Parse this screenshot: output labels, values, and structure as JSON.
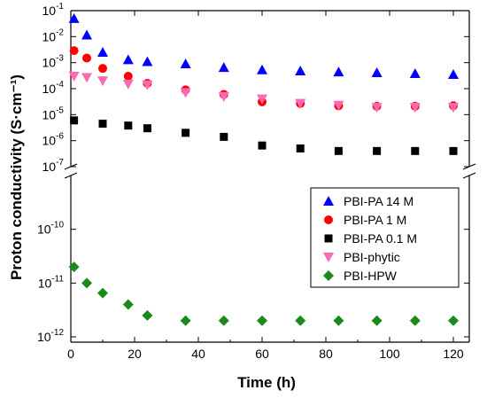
{
  "chart_data": {
    "type": "scatter",
    "xlabel": "Time (h)",
    "ylabel": "Proton conductivity (S·cm⁻¹)",
    "xlim": [
      0,
      125
    ],
    "xticks": [
      0,
      20,
      40,
      60,
      80,
      100,
      120
    ],
    "y_scale": "log",
    "y_axis_broken": true,
    "upper_panel": {
      "ylim": [
        1e-07,
        0.1
      ]
    },
    "lower_panel": {
      "ylim": [
        1e-12,
        1e-09
      ]
    },
    "yticks": [
      {
        "value": 0.1,
        "base": "10",
        "exp": "-1"
      },
      {
        "value": 0.01,
        "base": "10",
        "exp": "-2"
      },
      {
        "value": 0.001,
        "base": "10",
        "exp": "-3"
      },
      {
        "value": 0.0001,
        "base": "10",
        "exp": "-4"
      },
      {
        "value": 1e-05,
        "base": "10",
        "exp": "-5"
      },
      {
        "value": 1e-06,
        "base": "10",
        "exp": "-6"
      },
      {
        "value": 1e-07,
        "base": "10",
        "exp": "-7"
      },
      {
        "value": 1e-10,
        "base": "10",
        "exp": "-10"
      },
      {
        "value": 1e-11,
        "base": "10",
        "exp": "-11"
      },
      {
        "value": 1e-12,
        "base": "10",
        "exp": "-12"
      }
    ],
    "legend_position": "right",
    "series": [
      {
        "name": "PBI-PA 14 M",
        "marker": "triangle-up",
        "color": "#0000ff",
        "x": [
          1,
          5,
          10,
          18,
          24,
          36,
          48,
          60,
          72,
          84,
          96,
          108,
          120
        ],
        "y": [
          0.05,
          0.0115,
          0.0025,
          0.0013,
          0.0011,
          0.0009,
          0.00065,
          0.00053,
          0.00048,
          0.00044,
          0.00041,
          0.00038,
          0.00035
        ]
      },
      {
        "name": "PBI-PA 1 M",
        "marker": "circle",
        "color": "#ff0000",
        "x": [
          1,
          5,
          10,
          18,
          24,
          36,
          48,
          60,
          72,
          84,
          96,
          108,
          120
        ],
        "y": [
          0.0029,
          0.0015,
          0.0006,
          0.0003,
          0.00016,
          9e-05,
          6e-05,
          3.1e-05,
          2.7e-05,
          2.2e-05,
          2.1e-05,
          2.1e-05,
          2.2e-05
        ]
      },
      {
        "name": "PBI-PA 0.1 M",
        "marker": "square",
        "color": "#000000",
        "x": [
          1,
          10,
          18,
          24,
          36,
          48,
          60,
          72,
          84,
          96,
          108,
          120
        ],
        "y": [
          6e-06,
          4.5e-06,
          3.8e-06,
          3e-06,
          2e-06,
          1.4e-06,
          6.5e-07,
          5e-07,
          4e-07,
          4e-07,
          4e-07,
          4e-07
        ]
      },
      {
        "name": "PBI-phytic",
        "marker": "triangle-down",
        "color": "#ff69b4",
        "x": [
          1,
          5,
          10,
          18,
          24,
          36,
          48,
          60,
          72,
          84,
          96,
          108,
          120
        ],
        "y": [
          0.0003,
          0.00027,
          0.0002,
          0.00015,
          0.00014,
          7e-05,
          5e-05,
          4e-05,
          2.7e-05,
          2.3e-05,
          1.9e-05,
          1.9e-05,
          1.9e-05
        ]
      },
      {
        "name": "PBI-HPW",
        "marker": "diamond",
        "color": "#1a8a1a",
        "x": [
          1,
          5,
          10,
          18,
          24,
          36,
          48,
          60,
          72,
          84,
          96,
          108,
          120
        ],
        "y": [
          2e-11,
          1e-11,
          6.5e-12,
          4e-12,
          2.5e-12,
          2e-12,
          2e-12,
          2e-12,
          2e-12,
          2e-12,
          2e-12,
          2e-12,
          2e-12
        ]
      }
    ]
  }
}
